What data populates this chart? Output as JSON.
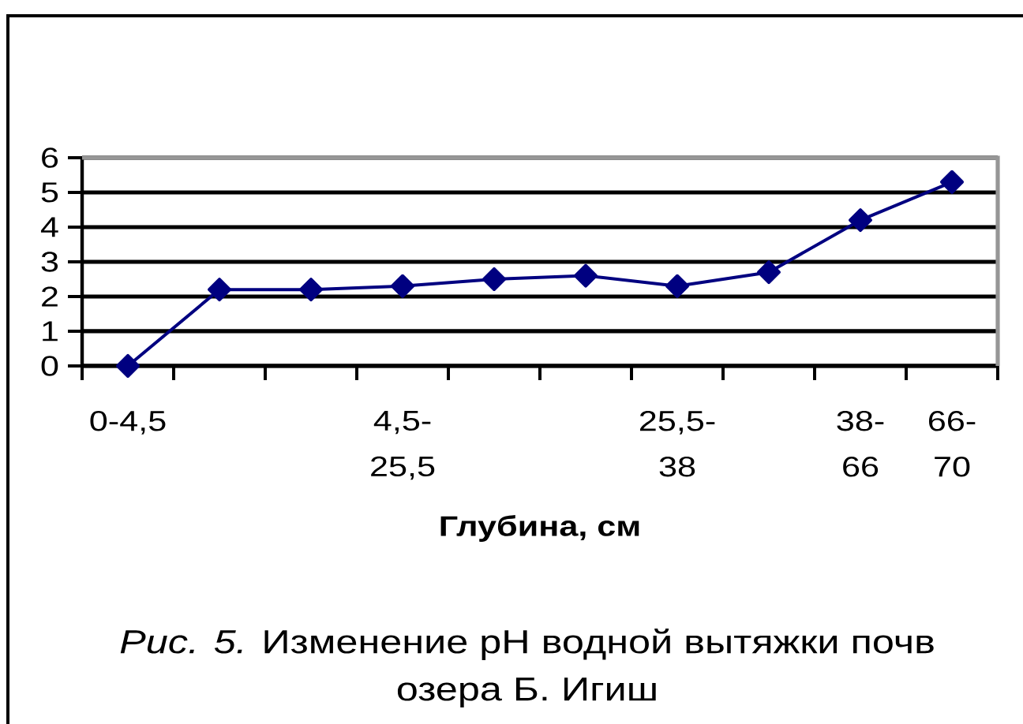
{
  "chart_data": {
    "type": "line",
    "xlabel": "Глубина, см",
    "categories": [
      "0-4,5",
      null,
      null,
      "4,5-25,5",
      null,
      null,
      "25,5-38",
      null,
      "38-66",
      "66-70"
    ],
    "values": [
      0,
      2.2,
      2.2,
      2.3,
      2.5,
      2.6,
      2.3,
      2.7,
      4.2,
      5.3
    ],
    "color": "#000080",
    "marker": "diamond",
    "ylim": [
      0,
      6
    ],
    "yticks": [
      0,
      1,
      2,
      3,
      4,
      5,
      6
    ],
    "grid": "y",
    "annotations": [
      "*Рис. 5.* Изменение pH водной вытяжки почв озера Б. Игиш"
    ]
  }
}
